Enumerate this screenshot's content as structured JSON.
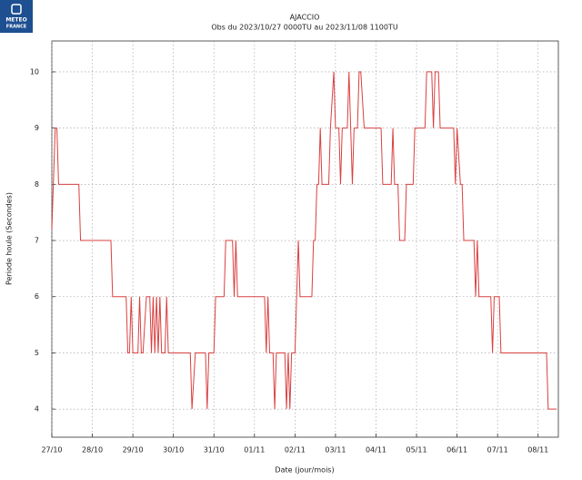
{
  "chart_data": {
    "type": "line",
    "logo": [
      "METEO",
      "FRANCE"
    ],
    "title": "AJACCIO",
    "subtitle": "Obs du 2023/10/27 0000TU au 2023/11/08 1100TU",
    "xlabel": "Date (jour/mois)",
    "ylabel": "Periode houle (Secondes)",
    "xlim": [
      0,
      300
    ],
    "ylim": [
      3.5,
      10.55
    ],
    "xticks": [
      {
        "value": 0,
        "label": "27/10"
      },
      {
        "value": 24,
        "label": "28/10"
      },
      {
        "value": 48,
        "label": "29/10"
      },
      {
        "value": 72,
        "label": "30/10"
      },
      {
        "value": 96,
        "label": "31/10"
      },
      {
        "value": 120,
        "label": "01/11"
      },
      {
        "value": 144,
        "label": "02/11"
      },
      {
        "value": 168,
        "label": "03/11"
      },
      {
        "value": 192,
        "label": "04/11"
      },
      {
        "value": 216,
        "label": "05/11"
      },
      {
        "value": 240,
        "label": "06/11"
      },
      {
        "value": 264,
        "label": "07/11"
      },
      {
        "value": 288,
        "label": "08/11"
      }
    ],
    "yticks": [
      4,
      5,
      6,
      7,
      8,
      9,
      10
    ],
    "grid": true,
    "series": [
      {
        "color": "#d94040",
        "x": [
          0,
          2,
          3,
          4,
          16,
          17,
          35,
          36,
          44,
          45,
          46,
          47,
          48,
          51,
          52,
          53,
          54,
          56,
          58,
          59,
          60,
          61,
          62,
          63,
          64,
          65,
          67,
          68,
          69,
          82,
          83,
          85,
          90,
          91,
          92,
          93,
          96,
          97,
          102,
          103,
          107,
          108,
          109,
          110,
          126,
          127,
          128,
          129,
          131,
          132,
          133,
          138,
          139,
          140,
          141,
          142,
          144,
          145,
          146,
          147,
          154,
          155,
          156,
          157,
          158,
          159,
          160,
          164,
          165,
          167,
          168,
          170,
          171,
          172,
          175,
          176,
          177,
          178,
          179,
          181,
          182,
          183,
          185,
          195,
          196,
          201,
          202,
          203,
          205,
          206,
          209,
          210,
          214,
          215,
          221,
          222,
          225,
          226,
          227,
          229,
          230,
          238,
          239,
          240,
          242,
          243,
          244,
          250,
          251,
          252,
          253,
          260,
          261,
          262,
          265,
          266,
          293,
          294,
          299
        ],
        "values": [
          7.2,
          9,
          9,
          8,
          8,
          7,
          7,
          6,
          6,
          5,
          5,
          6,
          5,
          5,
          6,
          5,
          5,
          6,
          6,
          5,
          6,
          5,
          6,
          5,
          6,
          5,
          5,
          6,
          5,
          5,
          4,
          5,
          5,
          5,
          4,
          5,
          5,
          6,
          6,
          7,
          7,
          6,
          7,
          6,
          6,
          5,
          6,
          5,
          5,
          4,
          5,
          5,
          4,
          5,
          4,
          5,
          5,
          6,
          7,
          6,
          6,
          7,
          7,
          8,
          8,
          9,
          8,
          8,
          9,
          10,
          9,
          9,
          8,
          9,
          9,
          10,
          9,
          8,
          9,
          9,
          10,
          10,
          9,
          9,
          8,
          8,
          9,
          8,
          8,
          7,
          7,
          8,
          8,
          9,
          9,
          10,
          10,
          9,
          10,
          10,
          9,
          9,
          8,
          9,
          8,
          8,
          7,
          7,
          6,
          7,
          6,
          6,
          5,
          6,
          6,
          5,
          5,
          4,
          4
        ]
      }
    ]
  }
}
